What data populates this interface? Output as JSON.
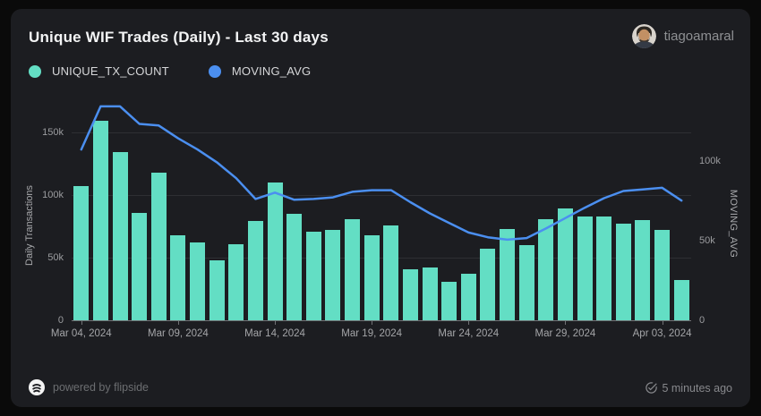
{
  "header": {
    "title": "Unique WIF Trades (Daily) - Last 30 days",
    "username": "tiagoamaral"
  },
  "legend": {
    "items": [
      {
        "label": "UNIQUE_TX_COUNT",
        "color": "#63dec4"
      },
      {
        "label": "MOVING_AVG",
        "color": "#4b8ff0"
      }
    ]
  },
  "chart_data": {
    "type": "bar",
    "title": "Unique WIF Trades (Daily) - Last 30 days",
    "categories": [
      "Mar 04, 2024",
      "Mar 05, 2024",
      "Mar 06, 2024",
      "Mar 07, 2024",
      "Mar 08, 2024",
      "Mar 09, 2024",
      "Mar 10, 2024",
      "Mar 11, 2024",
      "Mar 12, 2024",
      "Mar 13, 2024",
      "Mar 14, 2024",
      "Mar 15, 2024",
      "Mar 16, 2024",
      "Mar 17, 2024",
      "Mar 18, 2024",
      "Mar 19, 2024",
      "Mar 20, 2024",
      "Mar 21, 2024",
      "Mar 22, 2024",
      "Mar 23, 2024",
      "Mar 24, 2024",
      "Mar 25, 2024",
      "Mar 26, 2024",
      "Mar 27, 2024",
      "Mar 28, 2024",
      "Mar 29, 2024",
      "Mar 30, 2024",
      "Mar 31, 2024",
      "Apr 01, 2024",
      "Apr 02, 2024",
      "Apr 03, 2024",
      "Apr 04, 2024"
    ],
    "series": [
      {
        "name": "UNIQUE_TX_COUNT",
        "type": "bar",
        "axis": "left",
        "color": "#63dec4",
        "values": [
          107000,
          159000,
          134000,
          86000,
          118000,
          68000,
          62000,
          48000,
          61000,
          79000,
          110000,
          85000,
          71000,
          72000,
          81000,
          68000,
          76000,
          41000,
          42000,
          31000,
          37000,
          57000,
          73000,
          60000,
          81000,
          89000,
          83000,
          83000,
          77000,
          80000,
          72000,
          32000
        ]
      },
      {
        "name": "MOVING_AVG",
        "type": "line",
        "axis": "right",
        "color": "#4b8ff0",
        "values": [
          107000,
          134000,
          134000,
          123000,
          122000,
          114000,
          107000,
          99000,
          89000,
          76000,
          80000,
          75500,
          76000,
          77000,
          80500,
          81500,
          81500,
          74000,
          67000,
          61000,
          55000,
          52000,
          50500,
          51500,
          57500,
          64000,
          70500,
          76500,
          81000,
          82000,
          83000,
          75000
        ]
      }
    ],
    "x_axis": {
      "tick_indices": [
        0,
        5,
        10,
        15,
        20,
        25,
        30
      ]
    },
    "left_axis": {
      "label": "Daily Transactions",
      "range": [
        0,
        177000
      ],
      "ticks": [
        {
          "label": "0",
          "value": 0
        },
        {
          "label": "50k",
          "value": 50000
        },
        {
          "label": "100k",
          "value": 100000
        },
        {
          "label": "150k",
          "value": 150000
        }
      ]
    },
    "right_axis": {
      "label": "MOVING_AVG",
      "range": [
        0,
        139000
      ],
      "ticks": [
        {
          "label": "0",
          "value": 0
        },
        {
          "label": "50k",
          "value": 50000
        },
        {
          "label": "100k",
          "value": 100000
        }
      ]
    },
    "grid": true,
    "legend_position": "top-left"
  },
  "footer": {
    "powered_by": "powered by flipside",
    "updated": "5 minutes ago"
  },
  "colors": {
    "background": "#0a0a0a",
    "card": "#1c1d21",
    "bar": "#63dec4",
    "line": "#4b8ff0",
    "grid": "#2e2f33",
    "axis_line": "#717276",
    "tick_text": "#9b9c9f",
    "title_text": "#f3f4f5"
  }
}
